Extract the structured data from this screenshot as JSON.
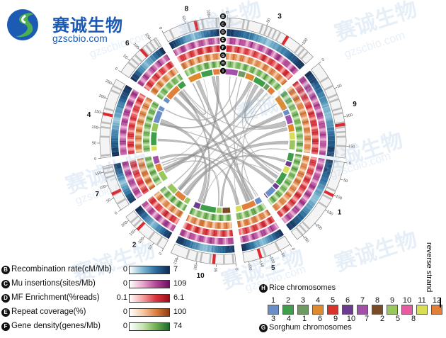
{
  "logo": {
    "name_cn": "赛诚生物",
    "domain": "gzscbio.com",
    "colors": {
      "blue": "#1c5ab4",
      "green": "#4caf50"
    }
  },
  "watermark": {
    "text_cn": "赛诚生物",
    "text_en": "gzscbio.com"
  },
  "track_letters": [
    "B",
    "C",
    "D",
    "E",
    "F",
    "G",
    "H",
    "I"
  ],
  "chromosomes": [
    {
      "label": "8",
      "ticks": [
        "0",
        "50",
        "100"
      ]
    },
    {
      "label": "3",
      "ticks": [
        "0",
        "50",
        "100"
      ]
    },
    {
      "label": "9",
      "ticks": [
        "0",
        "50",
        "100",
        "150"
      ]
    },
    {
      "label": "1",
      "ticks": [
        "0",
        "50",
        "100",
        "150",
        "200",
        "250"
      ]
    },
    {
      "label": "5",
      "ticks": [
        "0",
        "50",
        "100",
        "150",
        "200"
      ]
    },
    {
      "label": "10",
      "ticks": [
        "0",
        "50",
        "100",
        "150"
      ]
    },
    {
      "label": "2",
      "ticks": [
        "0",
        "50",
        "100",
        "150",
        "200"
      ]
    },
    {
      "label": "7",
      "ticks": [
        "0",
        "50",
        "100",
        "150"
      ]
    },
    {
      "label": "4",
      "ticks": [
        "0",
        "50",
        "100",
        "150",
        "200",
        "250"
      ]
    },
    {
      "label": "6",
      "ticks": [
        "0",
        "50",
        "100",
        "150"
      ]
    }
  ],
  "legend": {
    "rows": [
      {
        "badge": "B",
        "label": "Recombination rate(cM/Mb)",
        "min": "0",
        "max": "7",
        "colors": [
          "#ffffff",
          "#7fb7d1",
          "#2b6c9c",
          "#132b52"
        ]
      },
      {
        "badge": "C",
        "label": "Mu insertions(sites/Mb)",
        "min": "0",
        "max": "109",
        "colors": [
          "#ffffff",
          "#e8a6cd",
          "#b24796",
          "#6b1060"
        ]
      },
      {
        "badge": "D",
        "label": "MF Enrichment(%reads)",
        "min": "0.1",
        "max": "6.1",
        "colors": [
          "#ffffff",
          "#f5a0a0",
          "#d8343b",
          "#9a0e16"
        ]
      },
      {
        "badge": "E",
        "label": "Repeat coverage(%)",
        "min": "0",
        "max": "100",
        "colors": [
          "#ffffff",
          "#f6c9a6",
          "#dc7f3f",
          "#8f3c12"
        ]
      },
      {
        "badge": "F",
        "label": "Gene density(genes/Mb)",
        "min": "0",
        "max": "74",
        "colors": [
          "#ffffff",
          "#c7e4b0",
          "#6fb052",
          "#1f6a2b"
        ]
      }
    ],
    "rice": {
      "badge": "H",
      "title": "Rice chromosomes",
      "numbers": [
        "1",
        "2",
        "3",
        "4",
        "5",
        "6",
        "7",
        "8",
        "9",
        "10",
        "11",
        "12"
      ],
      "colors": [
        "#6a8fc8",
        "#3e9e49",
        "#6f9b62",
        "#e08a2e",
        "#d9342c",
        "#6d3b8f",
        "#a351a8",
        "#7b4a26",
        "#98c75d",
        "#e85aa2",
        "#d8df55",
        "#e27f3a"
      ]
    },
    "sorghum": {
      "badge": "G",
      "title": "Sorghum chromosomes",
      "numbers": [
        "3",
        "4",
        "1",
        "6",
        "9",
        "10",
        "7",
        "2",
        "5",
        "8"
      ]
    },
    "strand": "reverse strand"
  }
}
